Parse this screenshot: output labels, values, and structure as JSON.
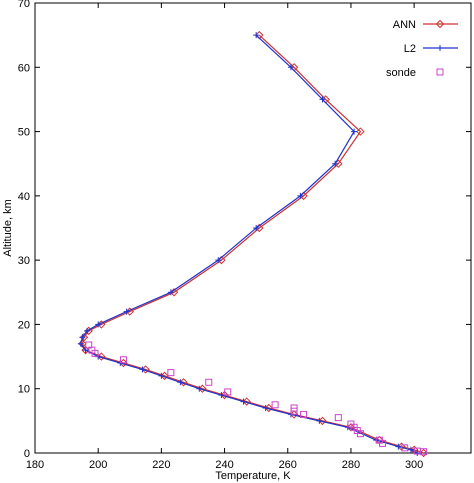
{
  "chart_data": {
    "type": "line",
    "xlabel": "Temperature, K",
    "ylabel": "Altitude, km",
    "xlim": [
      180,
      318
    ],
    "ylim": [
      0,
      70
    ],
    "xticks": [
      180,
      200,
      220,
      240,
      260,
      280,
      300
    ],
    "yticks": [
      0,
      10,
      20,
      30,
      40,
      50,
      60,
      70
    ],
    "grid": false,
    "legend_position": "top-right",
    "colors": {
      "ANN": "#cc3333",
      "L2": "#2233cc",
      "sonde": "#cc44cc",
      "axis": "#000000"
    },
    "series": [
      {
        "name": "ANN",
        "marker": "diamond",
        "style": "line",
        "x": [
          303,
          300,
          296,
          289,
          280,
          271,
          262,
          254,
          247,
          240,
          233,
          227,
          221,
          215,
          208,
          201,
          196,
          195,
          195.5,
          197,
          201,
          210,
          224,
          239,
          251,
          265,
          276,
          283,
          272,
          262,
          251
        ],
        "y": [
          0,
          0.5,
          1,
          2,
          4,
          5,
          6,
          7,
          8,
          9,
          10,
          11,
          12,
          13,
          14,
          15,
          16,
          17,
          18,
          19,
          20,
          22,
          25,
          30,
          35,
          40,
          45,
          50,
          55,
          60,
          65
        ]
      },
      {
        "name": "L2",
        "marker": "plus",
        "style": "line",
        "x": [
          301,
          299,
          295,
          288,
          279,
          270,
          261,
          253,
          246,
          239,
          232,
          226,
          220,
          214,
          207,
          200,
          196,
          194.5,
          195,
          196.5,
          200,
          209,
          223,
          238,
          250,
          264,
          275,
          281,
          271,
          261,
          250
        ],
        "y": [
          0,
          0.5,
          1,
          2,
          4,
          5,
          6,
          7,
          8,
          9,
          10,
          11,
          12,
          13,
          14,
          15,
          16,
          17,
          18,
          19,
          20,
          22,
          25,
          30,
          35,
          40,
          45,
          50,
          55,
          60,
          65
        ]
      },
      {
        "name": "sonde",
        "marker": "square",
        "style": "points",
        "x": [
          303,
          301,
          297,
          290,
          289,
          283,
          282,
          281,
          280,
          276,
          265,
          262,
          262,
          256,
          241,
          235,
          223,
          208,
          199,
          198,
          197
        ],
        "y": [
          0.2,
          0.3,
          0.8,
          1.5,
          2,
          3,
          3.5,
          4,
          4.5,
          5.5,
          6,
          6.5,
          7,
          7.5,
          9.5,
          11,
          12.5,
          14.5,
          15.5,
          16,
          16.8
        ]
      }
    ]
  }
}
